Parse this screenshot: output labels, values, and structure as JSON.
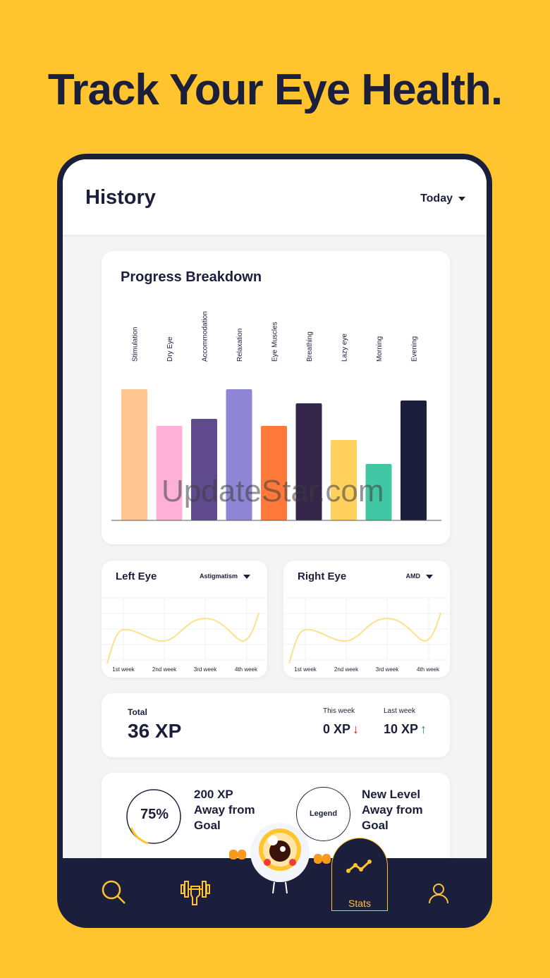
{
  "headline": "Track Your Eye Health.",
  "header": {
    "title": "History",
    "period": "Today"
  },
  "progress": {
    "title": "Progress Breakdown"
  },
  "chart_data": {
    "type": "bar",
    "title": "Progress Breakdown",
    "categories": [
      "Stimulation",
      "Dry Eye",
      "Accommodation",
      "Relaxation",
      "Eye Muscles",
      "Breathing",
      "Lazy eye",
      "Morning",
      "Evening"
    ],
    "values": [
      93,
      67,
      72,
      93,
      67,
      83,
      57,
      40,
      85
    ],
    "colors": [
      "#FFC590",
      "#FFB0D6",
      "#5E4A8C",
      "#8E86D4",
      "#FF7A3A",
      "#33264A",
      "#FFD15C",
      "#42C7A5",
      "#1B1F3B"
    ],
    "ylim": [
      0,
      100
    ]
  },
  "left_eye": {
    "title": "Left Eye",
    "condition": "Astigmatism",
    "weeks": [
      "1st week",
      "2nd week",
      "3rd week",
      "4th week"
    ]
  },
  "right_eye": {
    "title": "Right Eye",
    "condition": "AMD",
    "weeks": [
      "1st week",
      "2nd week",
      "3rd week",
      "4th week"
    ]
  },
  "xp": {
    "total_label": "Total",
    "total": "36 XP",
    "this_week_label": "This week",
    "this_week": "0 XP",
    "last_week_label": "Last week",
    "last_week": "10 XP"
  },
  "goal": {
    "percent": "75%",
    "percent_value": 75,
    "goal_text": [
      "200 XP",
      "Away from",
      "Goal"
    ],
    "legend": "Legend",
    "level_text": [
      "New Level",
      "Away from",
      "Goal"
    ]
  },
  "nav": {
    "stats": "Stats"
  },
  "watermark": "UpdateStar.com",
  "colors": {
    "accent": "#FFC42E",
    "navy": "#1B1F3B"
  }
}
